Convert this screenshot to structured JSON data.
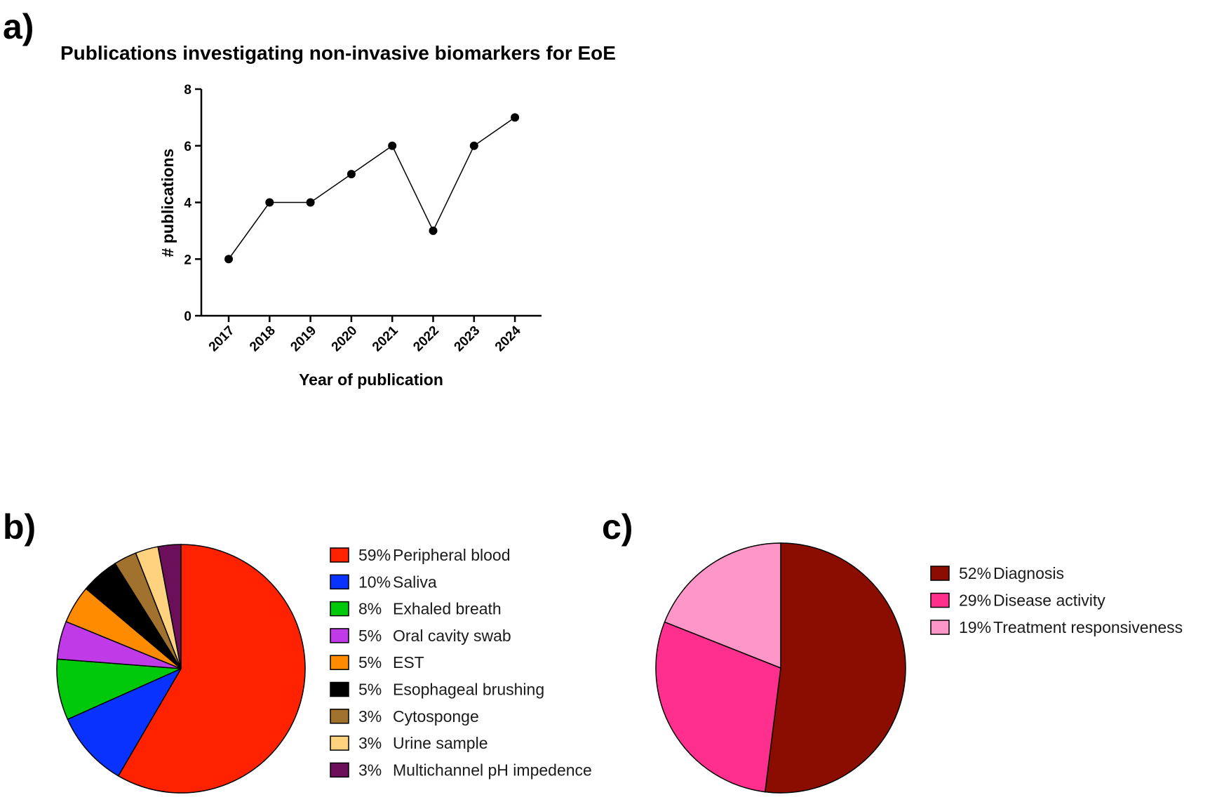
{
  "panels": {
    "a": {
      "label": "a)"
    },
    "b": {
      "label": "b)"
    },
    "c": {
      "label": "c)"
    }
  },
  "chart_data": [
    {
      "type": "line",
      "title": "Publications investigating non-invasive biomarkers for EoE",
      "xlabel": "Year of publication",
      "ylabel": "# publications",
      "x": [
        "2017",
        "2018",
        "2019",
        "2020",
        "2021",
        "2022",
        "2023",
        "2024"
      ],
      "y": [
        2,
        4,
        4,
        5,
        6,
        3,
        6,
        7
      ],
      "ylim": [
        0,
        8
      ],
      "yticks": [
        "0",
        "2",
        "4",
        "6",
        "8"
      ],
      "grid": false,
      "marker_color": "#000000"
    },
    {
      "type": "pie",
      "legend_position": "right",
      "slices": [
        {
          "label": "Peripheral blood",
          "pct_label": "59%",
          "value": 59,
          "color": "#ff2200"
        },
        {
          "label": "Saliva",
          "pct_label": "10%",
          "value": 10,
          "color": "#0a32ff"
        },
        {
          "label": "Exhaled breath",
          "pct_label": "8%",
          "value": 8,
          "color": "#00c80a"
        },
        {
          "label": "Oral cavity swab",
          "pct_label": "5%",
          "value": 5,
          "color": "#c03ae8"
        },
        {
          "label": "EST",
          "pct_label": "5%",
          "value": 5,
          "color": "#ff8c00"
        },
        {
          "label": "Esophageal brushing",
          "pct_label": "5%",
          "value": 5,
          "color": "#000000"
        },
        {
          "label": "Cytosponge",
          "pct_label": "3%",
          "value": 3,
          "color": "#a0722d"
        },
        {
          "label": "Urine sample",
          "pct_label": "3%",
          "value": 3,
          "color": "#ffd27f"
        },
        {
          "label": "Multichannel pH impedence",
          "pct_label": "3%",
          "value": 3,
          "color": "#6b0f5a"
        }
      ]
    },
    {
      "type": "pie",
      "legend_position": "right",
      "slices": [
        {
          "label": "Diagnosis",
          "pct_label": "52%",
          "value": 52,
          "color": "#8b0c00"
        },
        {
          "label": "Disease activity",
          "pct_label": "29%",
          "value": 29,
          "color": "#ff2f8e"
        },
        {
          "label": "Treatment responsiveness",
          "pct_label": "19%",
          "value": 19,
          "color": "#ff96c8"
        }
      ]
    }
  ]
}
